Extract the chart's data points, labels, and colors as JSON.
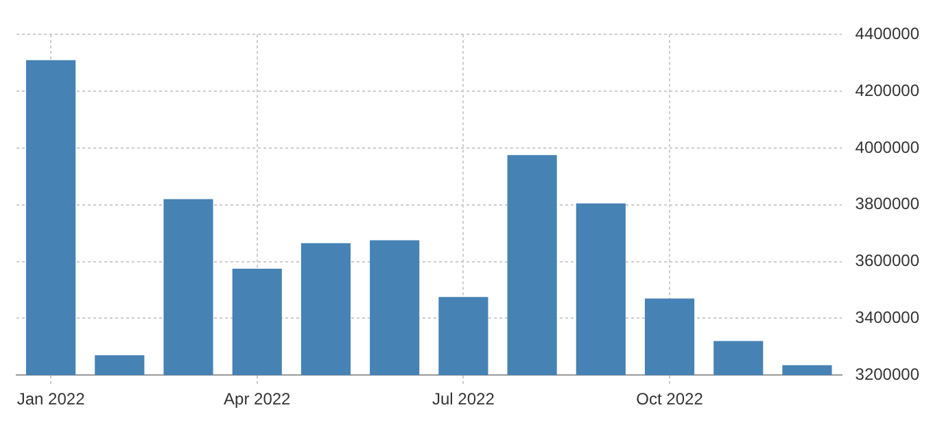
{
  "chart_data": {
    "type": "bar",
    "categories": [
      "Jan 2022",
      null,
      null,
      "Apr 2022",
      null,
      null,
      "Jul 2022",
      null,
      null,
      "Oct 2022",
      null,
      null
    ],
    "values": [
      4310000,
      3270000,
      3820000,
      3575000,
      3665000,
      3675000,
      3475000,
      3975000,
      3805000,
      3470000,
      3320000,
      3235000
    ],
    "color": "#4682b4",
    "ylim": [
      3200000,
      4400000
    ],
    "yticks": [
      3200000,
      3400000,
      3600000,
      3800000,
      4000000,
      4200000,
      4400000
    ],
    "grid": true
  }
}
